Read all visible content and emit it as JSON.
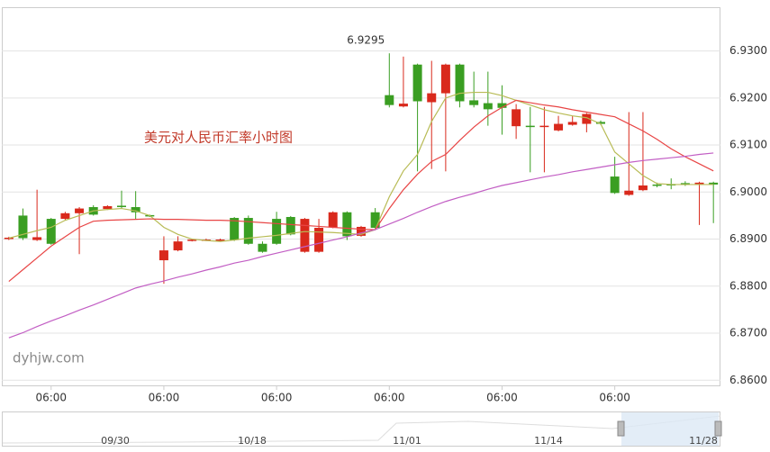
{
  "chart_data": {
    "type": "candlestick",
    "title": "美元对人民币汇率小时图",
    "watermark": "dyhjw.com",
    "max_label": "6.9295",
    "up_color": "#d9291c",
    "down_color": "#3a9e22",
    "categories": [
      null,
      null,
      null,
      "06:00",
      null,
      null,
      null,
      null,
      null,
      null,
      null,
      "06:00",
      null,
      null,
      null,
      null,
      null,
      null,
      null,
      "06:00",
      null,
      null,
      null,
      null,
      null,
      null,
      null,
      "06:00",
      null,
      null,
      null,
      null,
      null,
      null,
      null,
      "06:00",
      null,
      null,
      null,
      null,
      null,
      null,
      null,
      "06:00",
      null,
      null,
      null,
      null,
      null,
      null,
      null
    ],
    "open": [
      6.89,
      6.895,
      6.8898,
      6.8943,
      6.8943,
      6.8955,
      6.8968,
      6.8964,
      6.8971,
      6.8968,
      6.8951,
      6.8855,
      6.8876,
      6.8896,
      6.8898,
      6.8896,
      6.8945,
      6.8945,
      6.889,
      6.8943,
      6.8947,
      6.8873,
      6.8873,
      6.8925,
      6.8957,
      6.8907,
      6.8957,
      6.9206,
      6.9182,
      6.9271,
      6.9191,
      6.921,
      6.9271,
      6.9195,
      6.9189,
      6.9189,
      6.914,
      6.9141,
      6.914,
      6.9131,
      6.9143,
      6.9145,
      6.9149,
      6.9033,
      6.8994,
      6.9004,
      6.9016,
      6.9017,
      6.9019,
      6.9017,
      6.902
    ],
    "high": [
      6.8905,
      6.8965,
      6.9005,
      6.8945,
      6.8958,
      6.8968,
      6.8972,
      6.8972,
      6.9003,
      6.9002,
      6.8952,
      6.8906,
      6.8906,
      6.8901,
      6.8901,
      6.8901,
      6.8947,
      6.895,
      6.8895,
      6.8958,
      6.8949,
      6.8945,
      6.8943,
      6.8959,
      6.8959,
      6.8928,
      6.8966,
      6.9295,
      6.9288,
      6.9273,
      6.9279,
      6.9273,
      6.9273,
      6.9256,
      6.9256,
      6.9227,
      6.9187,
      6.9181,
      6.9181,
      6.9162,
      6.9162,
      6.9168,
      6.9152,
      6.9075,
      6.917,
      6.917,
      6.902,
      6.9029,
      6.9023,
      6.9022,
      6.9022
    ],
    "low": [
      6.8898,
      6.8898,
      6.8896,
      6.8888,
      6.894,
      6.8868,
      6.895,
      6.8962,
      6.8965,
      6.8942,
      6.8947,
      6.8805,
      6.8874,
      6.8895,
      6.8896,
      6.8895,
      6.8896,
      6.8888,
      6.8871,
      6.8888,
      6.8908,
      6.8871,
      6.8871,
      6.8923,
      6.8898,
      6.8905,
      6.8922,
      6.918,
      6.918,
      6.9044,
      6.9049,
      6.9044,
      6.918,
      6.918,
      6.9141,
      6.9122,
      6.9113,
      6.9042,
      6.9042,
      6.9129,
      6.9141,
      6.9127,
      6.9143,
      6.8996,
      6.8992,
      6.9002,
      6.901,
      6.9006,
      6.9013,
      6.893,
      6.8934
    ],
    "close": [
      6.8903,
      6.8902,
      6.8904,
      6.889,
      6.8955,
      6.8965,
      6.8952,
      6.897,
      6.8968,
      6.8957,
      6.8949,
      6.8876,
      6.8895,
      6.8899,
      6.8899,
      6.8899,
      6.8898,
      6.889,
      6.8873,
      6.889,
      6.891,
      6.8943,
      6.8924,
      6.8957,
      6.8906,
      6.8926,
      6.8924,
      6.9185,
      6.9188,
      6.9193,
      6.921,
      6.9271,
      6.9193,
      6.9185,
      6.9176,
      6.9179,
      6.9176,
      6.9139,
      6.9141,
      6.9145,
      6.9149,
      6.9166,
      6.9145,
      6.8998,
      6.9003,
      6.9014,
      6.9015,
      6.9014,
      6.9015,
      6.902,
      6.9016
    ],
    "series": [
      {
        "color": "#b8bb55",
        "values": [
          6.8902,
          6.891,
          6.8918,
          6.8925,
          6.894,
          6.895,
          6.896,
          6.8963,
          6.8965,
          6.896,
          6.895,
          6.8925,
          6.891,
          6.89,
          6.8897,
          6.8895,
          6.8898,
          6.8902,
          6.8905,
          6.8908,
          6.8912,
          6.8916,
          6.8915,
          6.8914,
          6.8912,
          6.891,
          6.892,
          6.899,
          6.9045,
          6.908,
          6.915,
          6.92,
          6.921,
          6.9212,
          6.9212,
          6.9205,
          6.9195,
          6.9185,
          6.9175,
          6.9168,
          6.9162,
          6.9158,
          6.9145,
          6.9085,
          6.906,
          6.9035,
          6.9018,
          6.9016,
          6.9016,
          6.9016,
          6.9016
        ]
      },
      {
        "color": "#e84545",
        "values": [
          6.881,
          6.8835,
          6.886,
          6.8885,
          6.8905,
          6.8925,
          6.8938,
          6.894,
          6.8941,
          6.8942,
          6.8943,
          6.8942,
          6.8942,
          6.8941,
          6.894,
          6.894,
          6.8939,
          6.8937,
          6.8935,
          6.8933,
          6.8931,
          6.8929,
          6.8927,
          6.8925,
          6.8923,
          6.8921,
          6.892,
          6.8965,
          6.9005,
          6.9038,
          6.9065,
          6.908,
          6.911,
          6.9138,
          6.9162,
          6.918,
          6.9195,
          6.919,
          6.9185,
          6.9181,
          6.9175,
          6.917,
          6.9165,
          6.916,
          6.9145,
          6.913,
          6.9112,
          6.9092,
          6.9075,
          6.906,
          6.9045
        ]
      },
      {
        "color": "#c25ec4",
        "values": [
          6.869,
          6.8701,
          6.8714,
          6.8726,
          6.8737,
          6.8749,
          6.876,
          6.8772,
          6.8784,
          6.8796,
          6.8804,
          6.8811,
          6.8819,
          6.8826,
          6.8834,
          6.8841,
          6.8849,
          6.8855,
          6.8863,
          6.887,
          6.8877,
          6.8884,
          6.8891,
          6.8898,
          6.8905,
          6.8913,
          6.892,
          6.8932,
          6.8944,
          6.8957,
          6.8969,
          6.898,
          6.8989,
          6.8997,
          6.9006,
          6.9014,
          6.902,
          6.9026,
          6.9032,
          6.9037,
          6.9043,
          6.9048,
          6.9053,
          6.9058,
          6.9063,
          6.9067,
          6.907,
          6.9073,
          6.9076,
          6.908,
          6.9083
        ]
      }
    ],
    "ylim": [
      6.8589,
      6.9393
    ],
    "yticks": [
      {
        "value": 6.86,
        "label": "6.8600"
      },
      {
        "value": 6.87,
        "label": "6.8700"
      },
      {
        "value": 6.88,
        "label": "6.8800"
      },
      {
        "value": 6.89,
        "label": "6.8900"
      },
      {
        "value": 6.9,
        "label": "6.9000"
      },
      {
        "value": 6.91,
        "label": "6.9100"
      },
      {
        "value": 6.92,
        "label": "6.9200"
      },
      {
        "value": 6.93,
        "label": "6.9300"
      }
    ],
    "grid": true,
    "navigator": {
      "labels": [
        "09/30",
        "10/18",
        "11/01",
        "11/14",
        "11/28"
      ]
    }
  }
}
